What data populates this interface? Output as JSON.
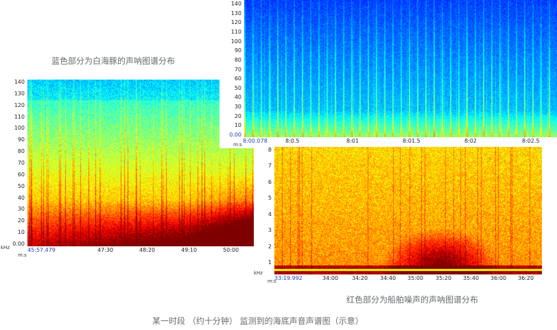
{
  "captions": {
    "blue_label": "蓝色部分为白海豚的声呐图谱分布",
    "red_label": "红色部分为船舶噪声的声呐图谱分布",
    "main_caption": "某一时段 （约十分钟） 监测到的海底声音声谱图（示意）"
  },
  "spectrograms": {
    "left": {
      "y_ticks": [
        "140",
        "130",
        "120",
        "110",
        "100",
        "90",
        "80",
        "70",
        "60",
        "50",
        "40",
        "30",
        "20",
        "10",
        "0.00"
      ],
      "x_ticks": [
        "45:57.479",
        "47:30",
        "48:20",
        "49:10",
        "50:00"
      ],
      "x_unit": "m:s",
      "y_unit": "kHz",
      "palette": "blue-to-red"
    },
    "top_right": {
      "y_ticks": [
        "140",
        "130",
        "120",
        "110",
        "100",
        "90",
        "80",
        "70",
        "60",
        "50",
        "40",
        "30",
        "20",
        "10",
        "0.00"
      ],
      "x_ticks": [
        "8:00.078",
        "8:0.5",
        "8:01",
        "8:01.5",
        "8:02",
        "8:02.5"
      ],
      "x_unit": "m:s",
      "palette": "deep-blue"
    },
    "bottom_right": {
      "y_ticks": [
        "8",
        "7",
        "6",
        "5",
        "4",
        "3",
        "2",
        "1"
      ],
      "x_ticks": [
        "33:19.992",
        "34:00",
        "34:20",
        "34:40",
        "35:00",
        "35:20",
        "35:40",
        "36:00",
        "36:20"
      ],
      "x_unit": "m:s",
      "y_unit": "kHz",
      "palette": "red-yellow"
    }
  }
}
